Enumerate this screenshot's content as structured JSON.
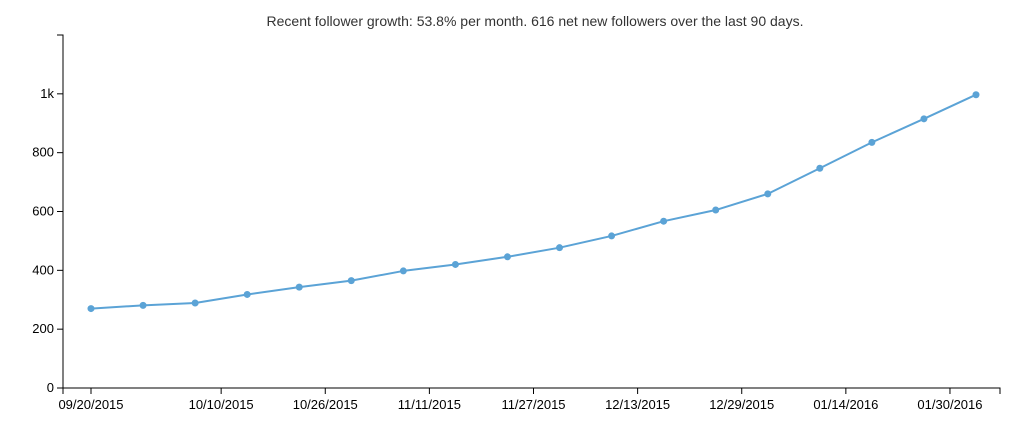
{
  "chart_data": {
    "type": "line",
    "title": "Recent follower growth: 53.8% per month. 616 net new followers over the last 90 days.",
    "xlabel": "",
    "ylabel": "",
    "ylim": [
      0,
      1200
    ],
    "xlim": [
      "2015-09-20",
      "2016-02-13"
    ],
    "grid": false,
    "legend": "none",
    "line_color": "#5ba3d6",
    "y_ticks": [
      0,
      200,
      400,
      600,
      800,
      1000
    ],
    "y_tick_labels": [
      "0",
      "200",
      "400",
      "600",
      "800",
      "1k"
    ],
    "x_ticks": [
      "2015-09-20",
      "2015-10-10",
      "2015-10-26",
      "2015-11-11",
      "2015-11-27",
      "2015-12-13",
      "2015-12-29",
      "2016-01-14",
      "2016-01-30"
    ],
    "x_tick_labels": [
      "09/20/2015",
      "10/10/2015",
      "10/26/2015",
      "11/11/2015",
      "11/27/2015",
      "12/13/2015",
      "12/29/2015",
      "01/14/2016",
      "01/30/2016"
    ],
    "series": [
      {
        "x": [
          "2015-09-20",
          "2015-09-28",
          "2015-10-06",
          "2015-10-14",
          "2015-10-22",
          "2015-10-30",
          "2015-11-07",
          "2015-11-15",
          "2015-11-23",
          "2015-12-01",
          "2015-12-09",
          "2015-12-17",
          "2015-12-25",
          "2016-01-02",
          "2016-01-10",
          "2016-01-18",
          "2016-01-26",
          "2016-02-03"
        ],
        "values": [
          270,
          281,
          289,
          318,
          343,
          365,
          398,
          420,
          446,
          477,
          517,
          567,
          605,
          660,
          747,
          835,
          915,
          997
        ]
      }
    ]
  }
}
